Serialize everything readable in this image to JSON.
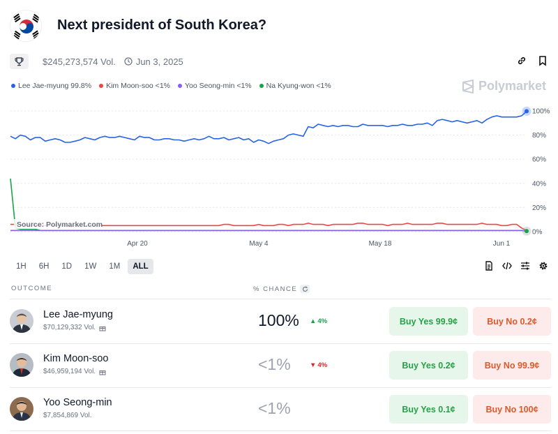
{
  "header": {
    "title": "Next president of South Korea?",
    "flag_icon": "south-korea-flag-icon"
  },
  "meta": {
    "volume": "$245,273,574 Vol.",
    "date": "Jun 3, 2025"
  },
  "legend": [
    {
      "label": "Lee Jae-myung 99.8%",
      "color": "#2563eb"
    },
    {
      "label": "Kim Moon-soo <1%",
      "color": "#ef4444"
    },
    {
      "label": "Yoo Seong-min <1%",
      "color": "#8b5cf6"
    },
    {
      "label": "Na Kyung-won <1%",
      "color": "#16a34a"
    }
  ],
  "brand": "Polymarket",
  "chart_data": {
    "type": "line",
    "source": "Source: Polymarket.com",
    "x_ticks": [
      "Apr 20",
      "May 4",
      "May 18",
      "Jun 1"
    ],
    "y_ticks": [
      "100%",
      "80%",
      "60%",
      "40%",
      "20%",
      "0%"
    ],
    "ylim": [
      0,
      100
    ],
    "series": [
      {
        "name": "Lee Jae-myung",
        "color": "#2563eb",
        "values": [
          79,
          77,
          80,
          79,
          76,
          78,
          78,
          75,
          76,
          77,
          76,
          74,
          74,
          75,
          76,
          78,
          77,
          76,
          78,
          79,
          78,
          78,
          79,
          78,
          77,
          76,
          79,
          78,
          78,
          76,
          76,
          77,
          77,
          76,
          76,
          75,
          76,
          77,
          76,
          77,
          79,
          77,
          77,
          78,
          76,
          77,
          78,
          76,
          77,
          74,
          76,
          75,
          73,
          75,
          76,
          77,
          80,
          81,
          80,
          79,
          87,
          86,
          89,
          88,
          87,
          88,
          87,
          88,
          88,
          87,
          87,
          89,
          88,
          88,
          88,
          88,
          87,
          88,
          88,
          89,
          88,
          88,
          89,
          89,
          90,
          88,
          92,
          93,
          92,
          91,
          92,
          91,
          90,
          91,
          92,
          90,
          93,
          95,
          96,
          95,
          95,
          95,
          95,
          96,
          99.8
        ]
      },
      {
        "name": "Kim Moon-soo",
        "color": "#ef4444",
        "values": [
          6,
          6,
          6,
          5,
          5,
          5,
          5,
          5,
          5,
          5,
          5,
          5,
          5,
          5,
          5,
          5,
          5,
          5,
          5,
          5,
          5,
          5,
          5,
          5,
          5,
          5,
          5,
          5,
          5,
          5,
          5,
          5,
          5,
          5,
          5,
          5,
          5,
          5,
          5,
          5,
          5,
          5,
          5,
          6,
          6,
          5,
          5,
          5,
          5,
          5,
          6,
          5,
          5,
          5,
          6,
          6,
          5,
          6,
          6,
          6,
          7,
          6,
          6,
          6,
          5,
          6,
          6,
          6,
          6,
          6,
          7,
          7,
          6,
          6,
          6,
          6,
          5,
          6,
          6,
          6,
          7,
          6,
          6,
          6,
          6,
          6,
          7,
          7,
          6,
          6,
          6,
          6,
          6,
          6,
          6,
          7,
          6,
          6,
          6,
          5,
          5,
          6,
          6,
          3,
          1
        ]
      },
      {
        "name": "Yoo Seong-min",
        "color": "#8b5cf6",
        "values": [
          1,
          1,
          1,
          1,
          1,
          1,
          1,
          1,
          1,
          1,
          1,
          1,
          1,
          1,
          1,
          1,
          1,
          1,
          1,
          1,
          1,
          1,
          1,
          1,
          1,
          1,
          1,
          1,
          1,
          1,
          1,
          1,
          1,
          1,
          1,
          1,
          1,
          1,
          1,
          1,
          1,
          1,
          1,
          1,
          1,
          1,
          1,
          1,
          1,
          1,
          1,
          1,
          1,
          1,
          1,
          1,
          1,
          1,
          1,
          1,
          1,
          1,
          1,
          1,
          1,
          1,
          1,
          1,
          1,
          1,
          1,
          1,
          1,
          1,
          1,
          1,
          1,
          1,
          1,
          1,
          1,
          1,
          1,
          1,
          1,
          1,
          1,
          1,
          1,
          1,
          1,
          1,
          1,
          1,
          1,
          1,
          1,
          1,
          1,
          1,
          1,
          1,
          1,
          1,
          0.5
        ]
      },
      {
        "name": "Na Kyung-won",
        "color": "#16a34a",
        "values": [
          44,
          3,
          2,
          2,
          2,
          2,
          1,
          1,
          1,
          1,
          1,
          1,
          1,
          1,
          1,
          1,
          1,
          1,
          1,
          1,
          1,
          1,
          1,
          1,
          1,
          1,
          1,
          1,
          1,
          1,
          1,
          1,
          1,
          1,
          1,
          1,
          1,
          1,
          1,
          1,
          1,
          1,
          1,
          1,
          1,
          1,
          1,
          1,
          1,
          1,
          1,
          1,
          1,
          1,
          1,
          1,
          1,
          1,
          1,
          1,
          1,
          1,
          1,
          1,
          1,
          1,
          1,
          1,
          1,
          1,
          1,
          1,
          1,
          1,
          1,
          1,
          1,
          1,
          1,
          1,
          1,
          1,
          1,
          1,
          1,
          1,
          1,
          1,
          1,
          1,
          1,
          1,
          1,
          1,
          1,
          1,
          1,
          1,
          1,
          1,
          1,
          1,
          1,
          1,
          0.5
        ]
      }
    ]
  },
  "ranges": [
    "1H",
    "6H",
    "1D",
    "1W",
    "1M",
    "ALL"
  ],
  "active_range": "ALL",
  "table": {
    "col_outcome": "OUTCOME",
    "col_chance": "% CHANCE",
    "rows": [
      {
        "name": "Lee Jae-myung",
        "volume": "$70,129,332 Vol.",
        "chance": "100%",
        "delta": "4%",
        "delta_dir": "up",
        "buy_yes": "Buy Yes 99.9¢",
        "buy_no": "Buy No 0.2¢"
      },
      {
        "name": "Kim Moon-soo",
        "volume": "$46,959,194 Vol.",
        "chance": "<1%",
        "delta": "4%",
        "delta_dir": "down",
        "buy_yes": "Buy Yes 0.2¢",
        "buy_no": "Buy No 99.9¢"
      },
      {
        "name": "Yoo Seong-min",
        "volume": "$7,854,869 Vol.",
        "chance": "<1%",
        "delta": "",
        "delta_dir": "",
        "buy_yes": "Buy Yes 0.1¢",
        "buy_no": "Buy No 100¢"
      }
    ]
  }
}
